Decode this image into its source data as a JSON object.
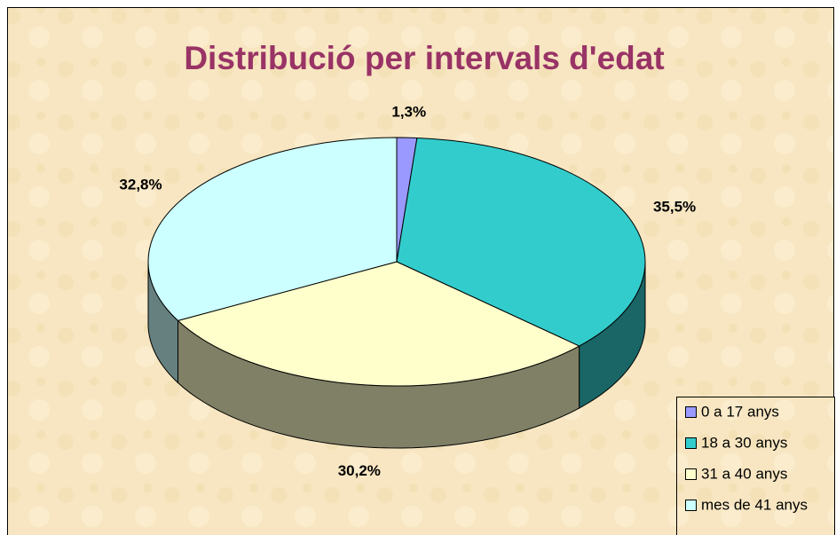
{
  "chart_data": {
    "type": "pie",
    "title": "Distribució per intervals d'edat",
    "categories": [
      "0 a 17 anys",
      "18 a 30 anys",
      "31 a 40 anys",
      "mes de 41 anys"
    ],
    "values": [
      1.3,
      35.5,
      30.2,
      32.8
    ],
    "value_labels": [
      "1,3%",
      "35,5%",
      "30,2%",
      "32,8%"
    ],
    "colors": [
      "#9999ff",
      "#33cccc",
      "#ffffcc",
      "#ccffff"
    ],
    "legend": "bottom-right"
  }
}
